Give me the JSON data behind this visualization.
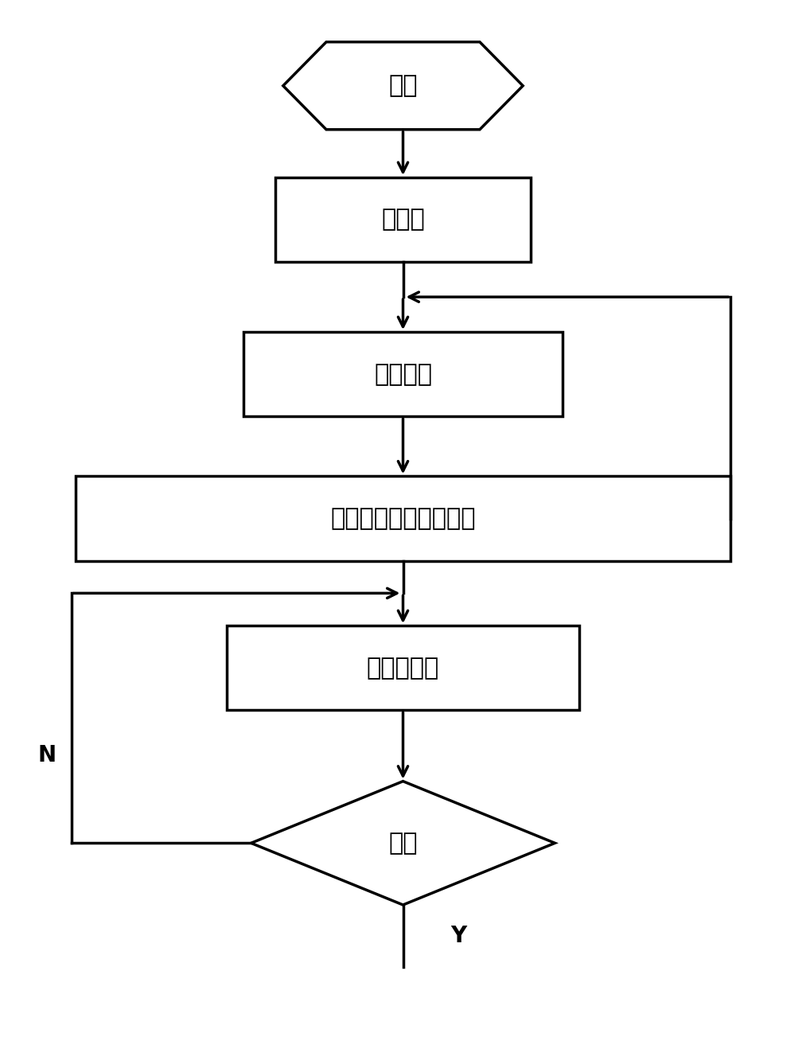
{
  "bg_color": "#ffffff",
  "line_color": "#000000",
  "text_color": "#000000",
  "font_size_main": 22,
  "font_size_label": 18,
  "label_N": "N",
  "label_Y": "Y",
  "nodes": {
    "start_label": "开始",
    "init_label": "初始化",
    "data_label": "数据采集",
    "algo_label": "调用预测模糊控制算法",
    "display_label": "显示与检测",
    "sample_label": "采样"
  }
}
